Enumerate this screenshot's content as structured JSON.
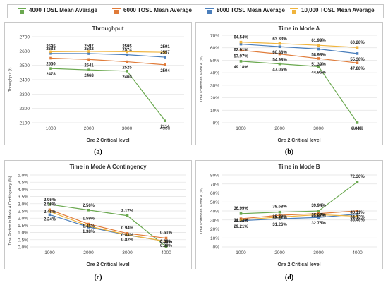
{
  "legend": {
    "items": [
      {
        "label": "4000  TOSL Mean Average",
        "color": "#6aa84f"
      },
      {
        "label": "6000  TOSL Mean Average",
        "color": "#e07b39"
      },
      {
        "label": "8000  TOSL Mean Average",
        "color": "#4a7ebb"
      },
      {
        "label": "10,000  TOSL Mean Average",
        "color": "#f0b43c"
      }
    ]
  },
  "captions": [
    "(a)",
    "(b)",
    "(c)",
    "(d)"
  ],
  "chart_data": [
    {
      "id": "a",
      "type": "line",
      "title": "Throughput",
      "xlabel": "Ore 2 Critical level",
      "ylabel": "Throughput (t)",
      "categories": [
        "1000",
        "2000",
        "3000",
        "4000"
      ],
      "ylim": [
        2100,
        2700
      ],
      "yticks": [
        2100,
        2200,
        2300,
        2400,
        2500,
        2600,
        2700
      ],
      "ytick_labels": [
        "2100",
        "2200",
        "2300",
        "2400",
        "2500",
        "2600",
        "2700"
      ],
      "grid": true,
      "series": [
        {
          "name": "4000  TOSL Mean Average",
          "color": "#6aa84f",
          "values": [
            2478,
            2468,
            2460,
            2114
          ],
          "labels": [
            "2478",
            "2468",
            "2460",
            "2114"
          ]
        },
        {
          "name": "6000  TOSL Mean Average",
          "color": "#e07b39",
          "values": [
            2550,
            2541,
            2525,
            2504
          ],
          "labels": [
            "2550",
            "2541",
            "2525",
            "2504"
          ]
        },
        {
          "name": "8000  TOSL Mean Average",
          "color": "#4a7ebb",
          "values": [
            2583,
            2582,
            2574,
            2557
          ],
          "labels": [
            "2583",
            "2582",
            "2574",
            "2557"
          ]
        },
        {
          "name": "10,000  TOSL Mean Average",
          "color": "#f0b43c",
          "values": [
            2595,
            2597,
            2595,
            2591
          ],
          "labels": [
            "2595",
            "2597",
            "2595",
            "2591"
          ]
        }
      ]
    },
    {
      "id": "b",
      "type": "line",
      "title": "Time in Mode A",
      "xlabel": "Ore 2 Critical level",
      "ylabel": "Time Portion in Mode A (%)",
      "categories": [
        "1000",
        "2000",
        "3000",
        "4000"
      ],
      "ylim": [
        0,
        70
      ],
      "yticks": [
        0,
        10,
        20,
        30,
        40,
        50,
        60,
        70
      ],
      "ytick_labels": [
        "0%",
        "10%",
        "20%",
        "30%",
        "40%",
        "50%",
        "60%",
        "70%"
      ],
      "grid": true,
      "series": [
        {
          "name": "4000  TOSL Mean Average",
          "color": "#6aa84f",
          "values": [
            49.18,
            47.06,
            44.95,
            0.04
          ],
          "labels": [
            "49.18%",
            "47.06%",
            "44.95%",
            "0.04%"
          ]
        },
        {
          "name": "6000  TOSL Mean Average",
          "color": "#e07b39",
          "values": [
            57.97,
            54.98,
            51.39,
            47.88
          ],
          "labels": [
            "57.97%",
            "54.98%",
            "51.39%",
            "47.88%"
          ]
        },
        {
          "name": "8000  TOSL Mean Average",
          "color": "#4a7ebb",
          "values": [
            62.91,
            60.88,
            58.98,
            55.38
          ],
          "labels": [
            "62.91%",
            "60.88%",
            "58.98%",
            "55.38%"
          ]
        },
        {
          "name": "10,000  TOSL Mean Average",
          "color": "#f0b43c",
          "values": [
            64.54,
            63.33,
            61.99,
            60.28
          ],
          "labels": [
            "64.54%",
            "63.33%",
            "61.99%",
            "60.28%"
          ]
        }
      ]
    },
    {
      "id": "c",
      "type": "line",
      "title": "Time in Mode A Contingency",
      "xlabel": "Ore 2 Critical level",
      "ylabel": "Time Portion in Mode A Contingency (%)",
      "categories": [
        "1000",
        "2000",
        "3000",
        "4000"
      ],
      "ylim": [
        0,
        5
      ],
      "yticks": [
        0,
        0.5,
        1,
        1.5,
        2,
        2.5,
        3,
        3.5,
        4,
        4.5,
        5
      ],
      "ytick_labels": [
        "0.0%",
        "0.5%",
        "1.0%",
        "1.5%",
        "2.0%",
        "2.5%",
        "3.0%",
        "3.5%",
        "4.0%",
        "4.5%",
        "5.0%"
      ],
      "grid": true,
      "series": [
        {
          "name": "4000  TOSL Mean Average",
          "color": "#6aa84f",
          "values": [
            2.95,
            2.56,
            2.17,
            0.01
          ],
          "labels": [
            "2.95%",
            "2.56%",
            "2.17%",
            "0.01%"
          ]
        },
        {
          "name": "6000  TOSL Mean Average",
          "color": "#e07b39",
          "values": [
            2.58,
            1.59,
            0.94,
            0.61
          ],
          "labels": [
            "2.58%",
            "1.59%",
            "0.94%",
            "0.61%"
          ]
        },
        {
          "name": "8000  TOSL Mean Average",
          "color": "#4a7ebb",
          "values": [
            2.24,
            1.38,
            0.82,
            0.39
          ],
          "labels": [
            "2.24%",
            "1.38%",
            "0.82%",
            "0.39%"
          ]
        },
        {
          "name": "10,000  TOSL Mean Average",
          "color": "#f0b43c",
          "values": [
            2.46,
            1.45,
            0.84,
            0.38
          ],
          "labels": [
            "2.46%",
            "1.45%",
            "0.84%",
            "0.38%"
          ]
        }
      ]
    },
    {
      "id": "d",
      "type": "line",
      "title": "Time in Mode B",
      "xlabel": "Ore 2 Critical level",
      "ylabel": "Time Portion in Mode A (%)",
      "categories": [
        "1000",
        "2000",
        "3000",
        "4000"
      ],
      "ylim": [
        0,
        80
      ],
      "yticks": [
        0,
        10,
        20,
        30,
        40,
        50,
        60,
        70,
        80
      ],
      "ytick_labels": [
        "0%",
        "10%",
        "20%",
        "30%",
        "40%",
        "50%",
        "60%",
        "70%",
        "80%"
      ],
      "grid": true,
      "series": [
        {
          "name": "4000  TOSL Mean Average",
          "color": "#6aa84f",
          "values": [
            36.99,
            38.68,
            39.94,
            72.3
          ],
          "labels": [
            "36.99%",
            "38.68%",
            "39.94%",
            "72.30%"
          ]
        },
        {
          "name": "6000  TOSL Mean Average",
          "color": "#e07b39",
          "values": [
            31.31,
            35.2,
            37.07,
            40.11
          ],
          "labels": [
            "31.31%",
            "35.20%",
            "37.07%",
            "40.11%"
          ]
        },
        {
          "name": "8000  TOSL Mean Average",
          "color": "#4a7ebb",
          "values": [
            29.21,
            31.26,
            32.75,
            36.46
          ],
          "labels": [
            "29.21%",
            "31.26%",
            "32.75%",
            "36.46%"
          ]
        },
        {
          "name": "10,000  TOSL Mean Average",
          "color": "#f0b43c",
          "values": [
            30.14,
            33.21,
            35.82,
            34.13
          ],
          "labels": [
            "30.14%",
            "33.21%",
            "35.82%",
            "34.13%"
          ]
        }
      ]
    }
  ]
}
